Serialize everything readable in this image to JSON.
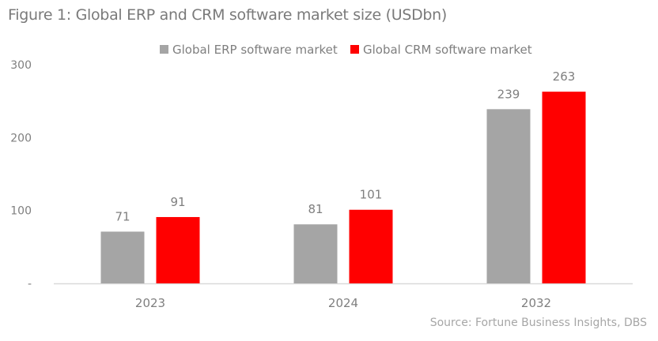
{
  "title": "Figure 1: Global ERP and CRM software market size (USDbn)",
  "source": "Source: Fortune Business Insights, DBS",
  "colors": {
    "erp": "#a5a5a5",
    "crm": "#ff0000",
    "text": "#7f7f7f",
    "axis": "#d9d9d9"
  },
  "chart_data": {
    "type": "bar",
    "title": "Figure 1: Global ERP and CRM software market size (USDbn)",
    "xlabel": "",
    "ylabel": "",
    "categories": [
      "2023",
      "2024",
      "2032"
    ],
    "series": [
      {
        "name": "Global ERP software market",
        "values": [
          71,
          81,
          239
        ]
      },
      {
        "name": "Global CRM software market",
        "values": [
          91,
          101,
          263
        ]
      }
    ],
    "ylim": [
      0,
      300
    ],
    "yticks": [
      0,
      100,
      200,
      300
    ],
    "ytick_labels": [
      "-",
      "100",
      "200",
      "300"
    ],
    "grid": false,
    "legend": "top-center",
    "data_labels": true
  }
}
